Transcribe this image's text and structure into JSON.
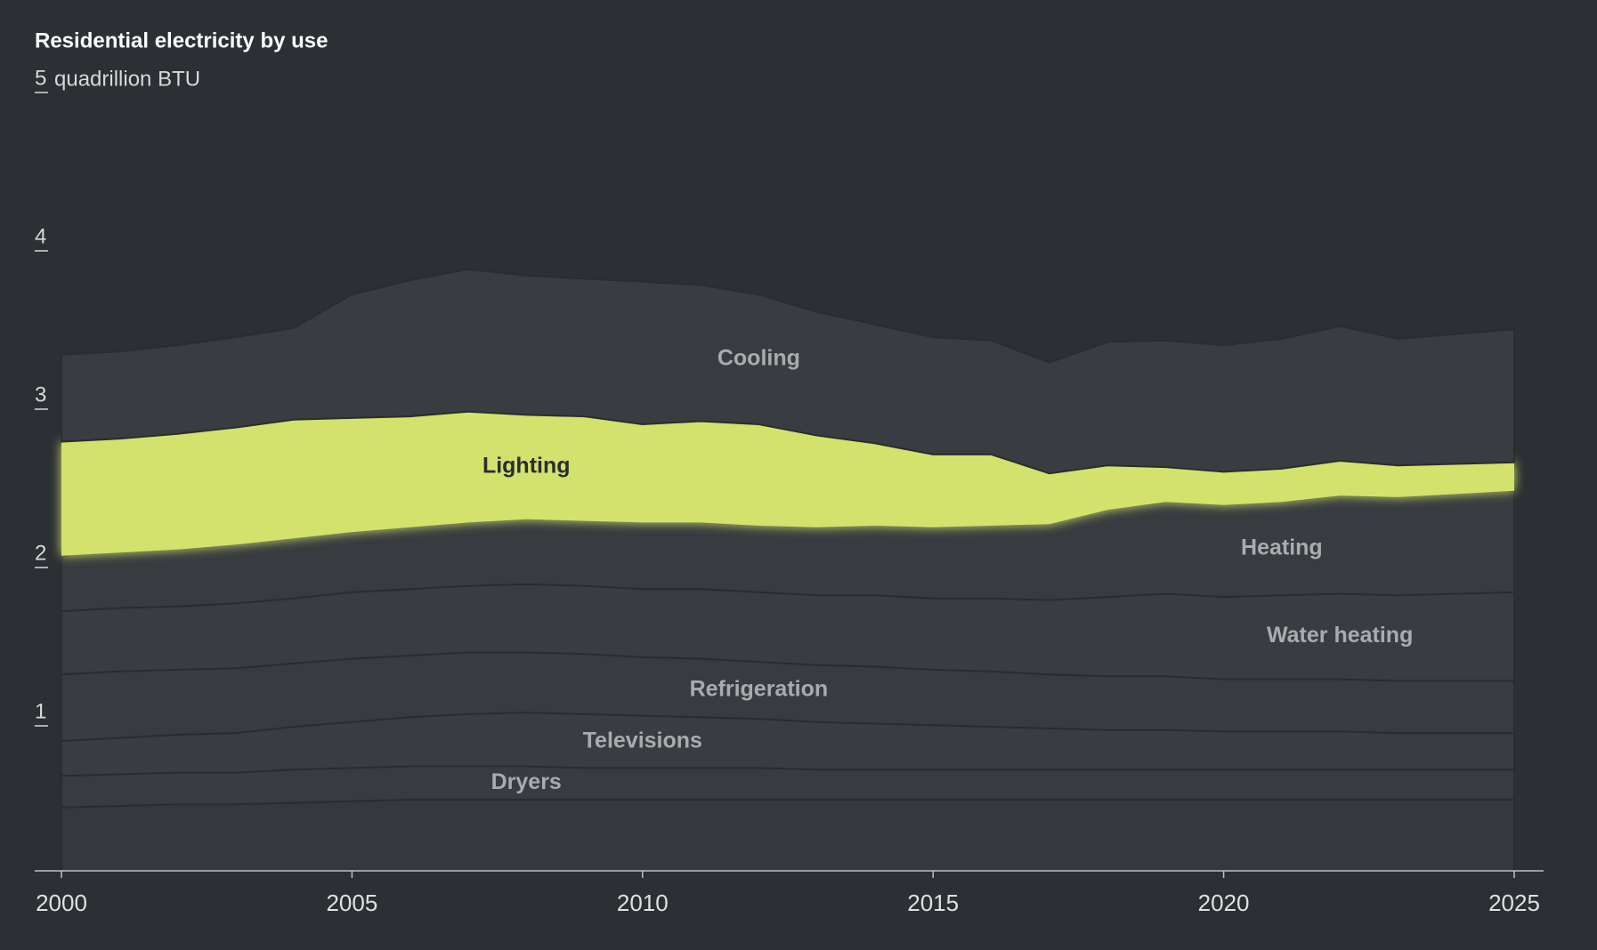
{
  "chart_data": {
    "type": "stacked-area",
    "title": "Residential electricity by use",
    "subtitle": "quadrillion BTU",
    "x": [
      2000,
      2001,
      2002,
      2003,
      2004,
      2005,
      2006,
      2007,
      2008,
      2009,
      2010,
      2011,
      2012,
      2013,
      2014,
      2015,
      2016,
      2017,
      2018,
      2019,
      2020,
      2021,
      2022,
      2023,
      2024,
      2025
    ],
    "xlim": [
      2000,
      2025
    ],
    "xticks": [
      2000,
      2005,
      2010,
      2015,
      2020,
      2025
    ],
    "ylim": [
      0,
      5
    ],
    "yticks": [
      1,
      2,
      3,
      4,
      5
    ],
    "series": [
      {
        "color": "#35383c",
        "values": [
          0.4,
          0.41,
          0.42,
          0.42,
          0.43,
          0.44,
          0.45,
          0.45,
          0.45,
          0.45,
          0.45,
          0.45,
          0.45,
          0.45,
          0.45,
          0.45,
          0.45,
          0.45,
          0.45,
          0.45,
          0.45,
          0.45,
          0.45,
          0.45,
          0.45,
          0.45
        ]
      },
      {
        "name": "Dryers",
        "color": "#383b3f",
        "values": [
          0.2,
          0.2,
          0.2,
          0.2,
          0.21,
          0.21,
          0.21,
          0.21,
          0.21,
          0.2,
          0.2,
          0.2,
          0.2,
          0.19,
          0.19,
          0.19,
          0.19,
          0.19,
          0.19,
          0.19,
          0.19,
          0.19,
          0.19,
          0.19,
          0.19,
          0.19
        ]
      },
      {
        "name": "Televisions",
        "color": "#393c40",
        "values": [
          0.22,
          0.23,
          0.24,
          0.25,
          0.27,
          0.29,
          0.31,
          0.33,
          0.34,
          0.34,
          0.33,
          0.32,
          0.31,
          0.3,
          0.29,
          0.28,
          0.27,
          0.26,
          0.25,
          0.25,
          0.24,
          0.24,
          0.24,
          0.23,
          0.23,
          0.23
        ]
      },
      {
        "name": "Refrigeration",
        "color": "#383b3f",
        "values": [
          0.42,
          0.42,
          0.41,
          0.41,
          0.4,
          0.4,
          0.39,
          0.39,
          0.38,
          0.38,
          0.37,
          0.37,
          0.36,
          0.36,
          0.36,
          0.35,
          0.35,
          0.34,
          0.34,
          0.34,
          0.33,
          0.33,
          0.33,
          0.33,
          0.33,
          0.33
        ]
      },
      {
        "name": "Water heating",
        "color": "#393c40",
        "values": [
          0.4,
          0.4,
          0.4,
          0.41,
          0.41,
          0.42,
          0.42,
          0.42,
          0.43,
          0.43,
          0.43,
          0.44,
          0.44,
          0.44,
          0.45,
          0.45,
          0.46,
          0.47,
          0.5,
          0.52,
          0.52,
          0.53,
          0.54,
          0.54,
          0.55,
          0.56
        ]
      },
      {
        "name": "Heating",
        "color": "#383b3f",
        "values": [
          0.35,
          0.35,
          0.36,
          0.37,
          0.38,
          0.38,
          0.39,
          0.4,
          0.41,
          0.41,
          0.42,
          0.42,
          0.42,
          0.43,
          0.44,
          0.45,
          0.46,
          0.48,
          0.55,
          0.58,
          0.58,
          0.59,
          0.62,
          0.62,
          0.63,
          0.64
        ]
      },
      {
        "name": "Lighting",
        "color": "#d3e26c",
        "values": [
          0.72,
          0.72,
          0.73,
          0.74,
          0.75,
          0.72,
          0.7,
          0.7,
          0.66,
          0.66,
          0.62,
          0.64,
          0.64,
          0.58,
          0.52,
          0.46,
          0.45,
          0.32,
          0.28,
          0.22,
          0.21,
          0.21,
          0.22,
          0.2,
          0.19,
          0.18
        ]
      },
      {
        "name": "Cooling",
        "color": "#393c40",
        "values": [
          0.55,
          0.55,
          0.56,
          0.57,
          0.58,
          0.78,
          0.86,
          0.9,
          0.88,
          0.87,
          0.9,
          0.86,
          0.82,
          0.78,
          0.75,
          0.74,
          0.72,
          0.7,
          0.78,
          0.8,
          0.8,
          0.82,
          0.85,
          0.8,
          0.82,
          0.84
        ]
      }
    ]
  }
}
